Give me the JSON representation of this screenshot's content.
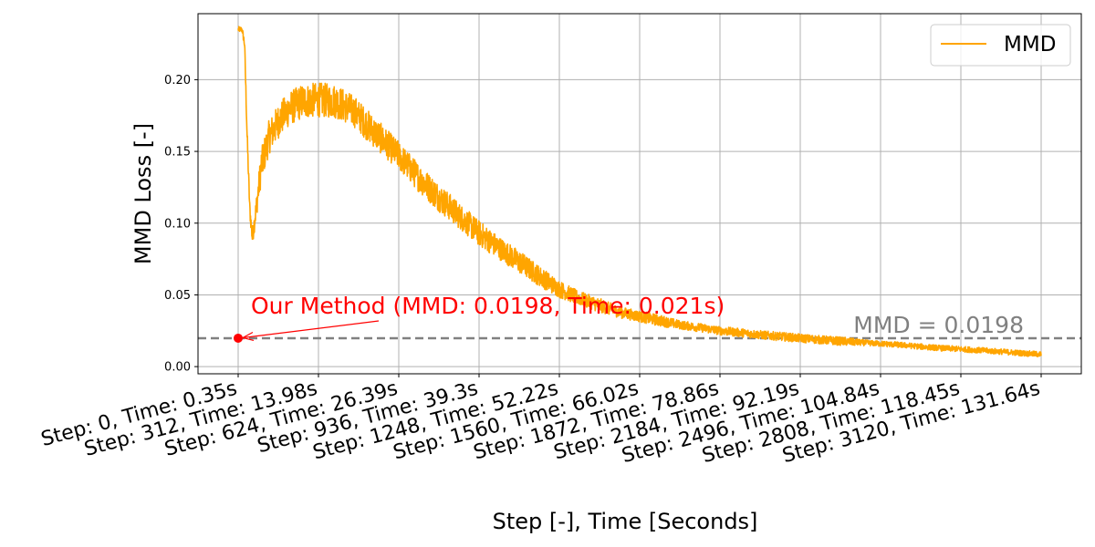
{
  "chart_data": {
    "type": "line",
    "title": "",
    "xlabel": "Step [-], Time [Seconds]",
    "ylabel": "MMD Loss [-]",
    "x_tick_labels": [
      "Step: 0, Time: 0.35s",
      "Step: 312, Time: 13.98s",
      "Step: 624, Time: 26.39s",
      "Step: 936, Time: 39.3s",
      "Step: 1248, Time: 52.22s",
      "Step: 1560, Time: 66.02s",
      "Step: 1872, Time: 78.86s",
      "Step: 2184, Time: 92.19s",
      "Step: 2496, Time: 104.84s",
      "Step: 2808, Time: 118.45s",
      "Step: 3120, Time: 131.64s"
    ],
    "x_ticks": [
      0,
      312,
      624,
      936,
      1248,
      1560,
      1872,
      2184,
      2496,
      2808,
      3120
    ],
    "y_ticks": [
      0.0,
      0.05,
      0.1,
      0.15,
      0.2
    ],
    "y_tick_labels": [
      "0.00",
      "0.05",
      "0.10",
      "0.15",
      "0.20"
    ],
    "xlim": [
      -156,
      3276
    ],
    "ylim": [
      -0.005,
      0.246
    ],
    "grid": true,
    "legend_position": "top-right",
    "series": [
      {
        "name": "MMD",
        "color": "#ffa500",
        "x": [
          0,
          15,
          25,
          35,
          45,
          55,
          70,
          90,
          120,
          160,
          200,
          250,
          312,
          380,
          450,
          520,
          624,
          700,
          780,
          860,
          936,
          1020,
          1100,
          1180,
          1248,
          1320,
          1400,
          1480,
          1560,
          1640,
          1720,
          1800,
          1872,
          1960,
          2040,
          2120,
          2184,
          2280,
          2360,
          2440,
          2496,
          2580,
          2660,
          2740,
          2808,
          2900,
          2980,
          3060,
          3120
        ],
        "y": [
          0.235,
          0.235,
          0.225,
          0.16,
          0.11,
          0.09,
          0.11,
          0.14,
          0.16,
          0.172,
          0.18,
          0.185,
          0.186,
          0.185,
          0.178,
          0.165,
          0.147,
          0.132,
          0.118,
          0.105,
          0.093,
          0.082,
          0.072,
          0.062,
          0.054,
          0.048,
          0.043,
          0.038,
          0.035,
          0.032,
          0.029,
          0.027,
          0.025,
          0.0235,
          0.022,
          0.0208,
          0.0198,
          0.0185,
          0.0175,
          0.0165,
          0.016,
          0.015,
          0.0138,
          0.0128,
          0.0122,
          0.0112,
          0.0102,
          0.0092,
          0.0085
        ],
        "noise_amplitude": [
          0.002,
          0.002,
          0.004,
          0.006,
          0.006,
          0.006,
          0.008,
          0.012,
          0.012,
          0.012,
          0.012,
          0.012,
          0.012,
          0.012,
          0.011,
          0.011,
          0.01,
          0.01,
          0.01,
          0.009,
          0.009,
          0.008,
          0.008,
          0.007,
          0.006,
          0.005,
          0.005,
          0.004,
          0.004,
          0.004,
          0.003,
          0.003,
          0.003,
          0.003,
          0.003,
          0.003,
          0.003,
          0.003,
          0.003,
          0.002,
          0.002,
          0.002,
          0.002,
          0.002,
          0.002,
          0.002,
          0.002,
          0.002,
          0.002
        ]
      }
    ],
    "reference_line": {
      "y": 0.0198,
      "label": "MMD = 0.0198",
      "color": "#808080",
      "style": "dashed"
    },
    "annotation": {
      "text": "Our Method (MMD: 0.0198, Time: 0.021s)",
      "point_x": 0,
      "point_y": 0.0198,
      "color": "#ff0000"
    }
  }
}
